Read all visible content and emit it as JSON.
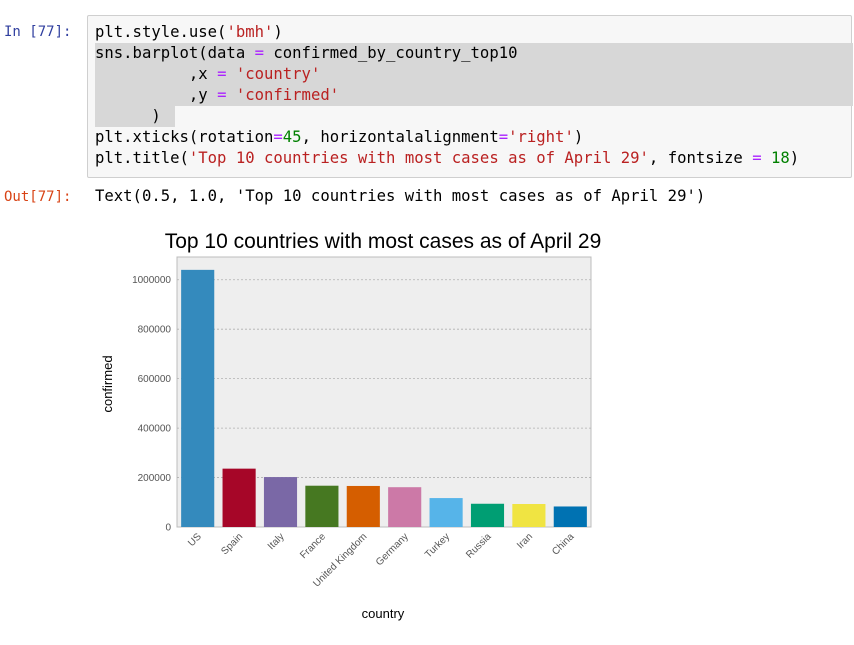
{
  "cell": {
    "in_prompt": "In [77]:",
    "out_prompt": "Out[77]:",
    "code_lines": [
      [
        {
          "t": "plt.style.use("
        },
        {
          "t": "'bmh'",
          "c": "kw-str"
        },
        {
          "t": ")"
        }
      ],
      [
        {
          "t": "sns.barplot(data "
        },
        {
          "t": "=",
          "c": "kw-op"
        },
        {
          "t": " confirmed_by_country_top10"
        }
      ],
      [
        {
          "t": "          ,x "
        },
        {
          "t": "=",
          "c": "kw-op"
        },
        {
          "t": " "
        },
        {
          "t": "'country'",
          "c": "kw-str"
        }
      ],
      [
        {
          "t": "          ,y "
        },
        {
          "t": "=",
          "c": "kw-op"
        },
        {
          "t": " "
        },
        {
          "t": "'confirmed'",
          "c": "kw-str"
        }
      ],
      [
        {
          "t": "      )"
        }
      ],
      [
        {
          "t": "plt.xticks(rotation"
        },
        {
          "t": "=",
          "c": "kw-op"
        },
        {
          "t": "45",
          "c": "kw-num"
        },
        {
          "t": ", horizontalalignment"
        },
        {
          "t": "=",
          "c": "kw-op"
        },
        {
          "t": "'right'",
          "c": "kw-str"
        },
        {
          "t": ")"
        }
      ],
      [
        {
          "t": "plt.title("
        },
        {
          "t": "'Top 10 countries with most cases as of April 29'",
          "c": "kw-str"
        },
        {
          "t": ", fontsize "
        },
        {
          "t": "=",
          "c": "kw-op"
        },
        {
          "t": " "
        },
        {
          "t": "18",
          "c": "kw-num"
        },
        {
          "t": ")"
        }
      ]
    ],
    "output_text": "Text(0.5, 1.0, 'Top 10 countries with most cases as of April 29')"
  },
  "chart_data": {
    "type": "bar",
    "title": "Top 10 countries with most cases as of April 29",
    "xlabel": "country",
    "ylabel": "confirmed",
    "categories": [
      "US",
      "Spain",
      "Italy",
      "France",
      "United Kingdom",
      "Germany",
      "Turkey",
      "Russia",
      "Iran",
      "China"
    ],
    "values": [
      1040000,
      236000,
      202000,
      167000,
      166000,
      161000,
      117000,
      94000,
      93000,
      83000
    ],
    "colors": [
      "#348ABD",
      "#A60628",
      "#7A68A6",
      "#467821",
      "#D55E00",
      "#CC79A7",
      "#56B4E9",
      "#009E73",
      "#F0E442",
      "#0072B2"
    ],
    "y_ticks": [
      0,
      200000,
      400000,
      600000,
      800000,
      1000000
    ],
    "y_tick_labels": [
      "0",
      "200000",
      "400000",
      "600000",
      "800000",
      "1000000"
    ],
    "ylim": [
      0,
      1092000
    ],
    "grid": true,
    "style": "bmh",
    "xtick_rotation": 45
  }
}
